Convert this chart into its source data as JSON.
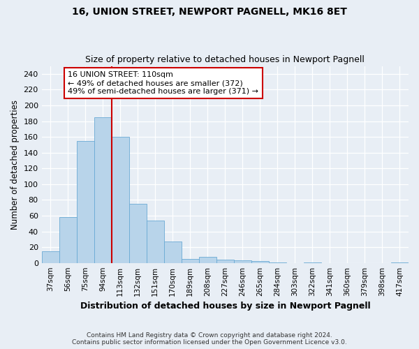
{
  "title1": "16, UNION STREET, NEWPORT PAGNELL, MK16 8ET",
  "title2": "Size of property relative to detached houses in Newport Pagnell",
  "xlabel": "Distribution of detached houses by size in Newport Pagnell",
  "ylabel": "Number of detached properties",
  "bin_labels": [
    "37sqm",
    "56sqm",
    "75sqm",
    "94sqm",
    "113sqm",
    "132sqm",
    "151sqm",
    "170sqm",
    "189sqm",
    "208sqm",
    "227sqm",
    "246sqm",
    "265sqm",
    "284sqm",
    "303sqm",
    "322sqm",
    "341sqm",
    "360sqm",
    "379sqm",
    "398sqm",
    "417sqm"
  ],
  "bar_heights": [
    15,
    58,
    155,
    185,
    160,
    75,
    54,
    27,
    5,
    8,
    4,
    3,
    2,
    1,
    0,
    1,
    0,
    0,
    0,
    0,
    1
  ],
  "bar_color": "#b8d4ea",
  "bar_edge_color": "#6aaad4",
  "vline_x": 3.5,
  "vline_color": "#cc0000",
  "annotation_title": "16 UNION STREET: 110sqm",
  "annotation_line1": "← 49% of detached houses are smaller (372)",
  "annotation_line2": "49% of semi-detached houses are larger (371) →",
  "annotation_box_color": "#cc0000",
  "annotation_fill": "#ffffff",
  "yticks": [
    0,
    20,
    40,
    60,
    80,
    100,
    120,
    140,
    160,
    180,
    200,
    220,
    240
  ],
  "ylim": [
    0,
    250
  ],
  "footer1": "Contains HM Land Registry data © Crown copyright and database right 2024.",
  "footer2": "Contains public sector information licensed under the Open Government Licence v3.0.",
  "bg_color": "#e8eef5",
  "plot_bg_color": "#e8eef5"
}
